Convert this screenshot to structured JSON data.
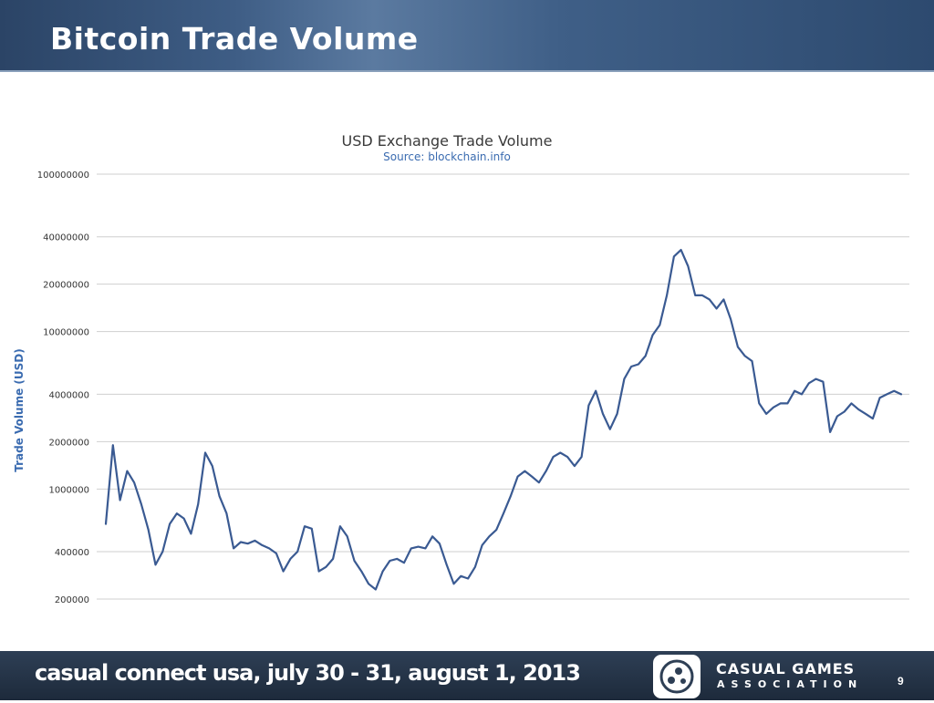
{
  "slide": {
    "title": "Bitcoin Trade Volume",
    "page_number": "9"
  },
  "footer": {
    "event_text": "casual connect usa, july 30 - 31, august 1, 2013",
    "logo_name": "CASUAL GAMES",
    "logo_sub": "ASSOCIATION"
  },
  "colors": {
    "header": "#3e5d85",
    "line": "#3a5a92",
    "ylabel": "#3a6bb0",
    "grid": "#cfcfcf"
  },
  "chart_data": {
    "type": "line",
    "title": "USD Exchange Trade Volume",
    "subtitle": "Source: blockchain.info",
    "ylabel": "Trade Volume (USD)",
    "xlabel": "",
    "y_scale": "log",
    "ylim": [
      200000,
      100000000
    ],
    "y_ticks": [
      200000,
      400000,
      1000000,
      2000000,
      4000000,
      10000000,
      20000000,
      40000000,
      100000000
    ],
    "y_tick_labels": [
      "200000",
      "400000",
      "1000000",
      "2000000",
      "4000000",
      "10000000",
      "20000000",
      "40000000",
      "100000000"
    ],
    "grid": true,
    "legend": "none",
    "series": [
      {
        "values": [
          600000,
          1900000,
          850000,
          1300000,
          1100000,
          800000,
          550000,
          330000,
          400000,
          600000,
          700000,
          650000,
          520000,
          800000,
          1700000,
          1400000,
          900000,
          700000,
          420000,
          460000,
          450000,
          470000,
          440000,
          420000,
          390000,
          300000,
          360000,
          400000,
          580000,
          560000,
          300000,
          320000,
          360000,
          580000,
          500000,
          350000,
          300000,
          250000,
          230000,
          300000,
          350000,
          360000,
          340000,
          420000,
          430000,
          420000,
          500000,
          450000,
          330000,
          250000,
          280000,
          270000,
          320000,
          440000,
          500000,
          550000,
          700000,
          900000,
          1200000,
          1300000,
          1200000,
          1100000,
          1300000,
          1600000,
          1700000,
          1600000,
          1400000,
          1600000,
          3400000,
          4200000,
          3000000,
          2400000,
          3000000,
          5000000,
          6000000,
          6200000,
          7000000,
          9500000,
          11000000,
          17000000,
          30000000,
          33000000,
          26000000,
          17000000,
          17000000,
          16000000,
          14000000,
          16000000,
          12000000,
          8000000,
          7000000,
          6500000,
          3500000,
          3000000,
          3300000,
          3500000,
          3500000,
          4200000,
          4000000,
          4700000,
          5000000,
          4800000,
          2300000,
          2900000,
          3100000,
          3500000,
          3200000,
          3000000,
          2800000,
          3800000,
          4000000,
          4200000,
          4000000
        ]
      }
    ]
  }
}
